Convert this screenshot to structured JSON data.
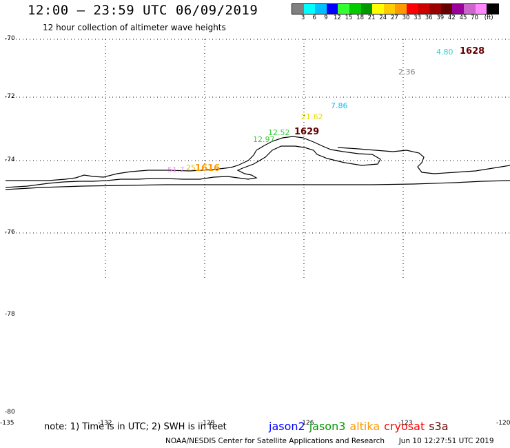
{
  "header": {
    "title": "12:00 – 23:59 UTC 06/09/2019",
    "subtitle": "12 hour collection of altimeter wave heights"
  },
  "colorbar": {
    "colors": [
      "#808080",
      "#00ffff",
      "#00bfff",
      "#0000ff",
      "#33ff33",
      "#00cc00",
      "#009900",
      "#ffff00",
      "#ffcc00",
      "#ff9900",
      "#ff0000",
      "#cc0000",
      "#990000",
      "#660000",
      "#990099",
      "#cc66cc",
      "#ff88ff",
      "#000000"
    ],
    "labels": [
      "3",
      "6",
      "9",
      "12",
      "15",
      "18",
      "21",
      "24",
      "27",
      "30",
      "33",
      "36",
      "39",
      "42",
      "45",
      "70",
      "(ft)"
    ]
  },
  "map": {
    "lat_labels": [
      "-70",
      "-72",
      "-74",
      "-76",
      "-78",
      "-80"
    ],
    "lon_labels": [
      "-135",
      "-132",
      "-129",
      "-126",
      "-123",
      "-120"
    ]
  },
  "observations": [
    {
      "text": "4.80",
      "color": "#33cccc"
    },
    {
      "text": "2.36",
      "color": "#808080"
    },
    {
      "text": "7.86",
      "color": "#00bfff"
    },
    {
      "text": "21.62",
      "color": "#e6d800"
    },
    {
      "text": "12.52",
      "color": "#33cc33"
    },
    {
      "text": "12.97",
      "color": "#33cc33"
    },
    {
      "text": "51.7",
      "color": "#ff88ff"
    },
    {
      "text": "25",
      "color": "#e6c000"
    }
  ],
  "times": [
    {
      "text": "1628",
      "color": "#660000"
    },
    {
      "text": "1629",
      "color": "#660000"
    },
    {
      "text": "1616",
      "color": "#ff9900"
    }
  ],
  "footer": {
    "note": "note: 1) Time is in UTC; 2) SWH is in feet",
    "satellites": [
      {
        "name": "jason2",
        "color": "#0000ff"
      },
      {
        "name": "jason3",
        "color": "#009900"
      },
      {
        "name": "altika",
        "color": "#ff9900"
      },
      {
        "name": "cryosat",
        "color": "#ff0000"
      },
      {
        "name": "s3a",
        "color": "#660000"
      }
    ],
    "credit": "NOAA/NESDIS Center for Satellite Applications and Research",
    "timestamp": "Jun 10 12:27:51 UTC 2019"
  }
}
